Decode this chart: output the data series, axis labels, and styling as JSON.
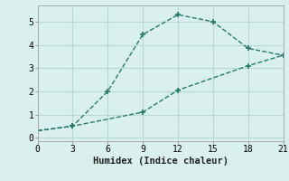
{
  "line1_x": [
    0,
    3,
    6,
    9,
    12,
    15,
    18,
    21
  ],
  "line1_y": [
    0.3,
    0.5,
    2.0,
    4.45,
    5.3,
    5.0,
    3.85,
    3.55
  ],
  "line2_x": [
    0,
    3,
    9,
    12,
    18,
    21
  ],
  "line2_y": [
    0.3,
    0.5,
    1.1,
    2.05,
    3.1,
    3.55
  ],
  "color": "#267a6a",
  "bg_color": "#daf0ee",
  "grid_color": "#b8d8d4",
  "xlabel": "Humidex (Indice chaleur)",
  "xlim": [
    0,
    21
  ],
  "ylim": [
    -0.15,
    5.7
  ],
  "xticks": [
    0,
    3,
    6,
    9,
    12,
    15,
    18,
    21
  ],
  "yticks": [
    0,
    1,
    2,
    3,
    4,
    5
  ],
  "tick_fontsize": 7,
  "xlabel_fontsize": 7.5
}
